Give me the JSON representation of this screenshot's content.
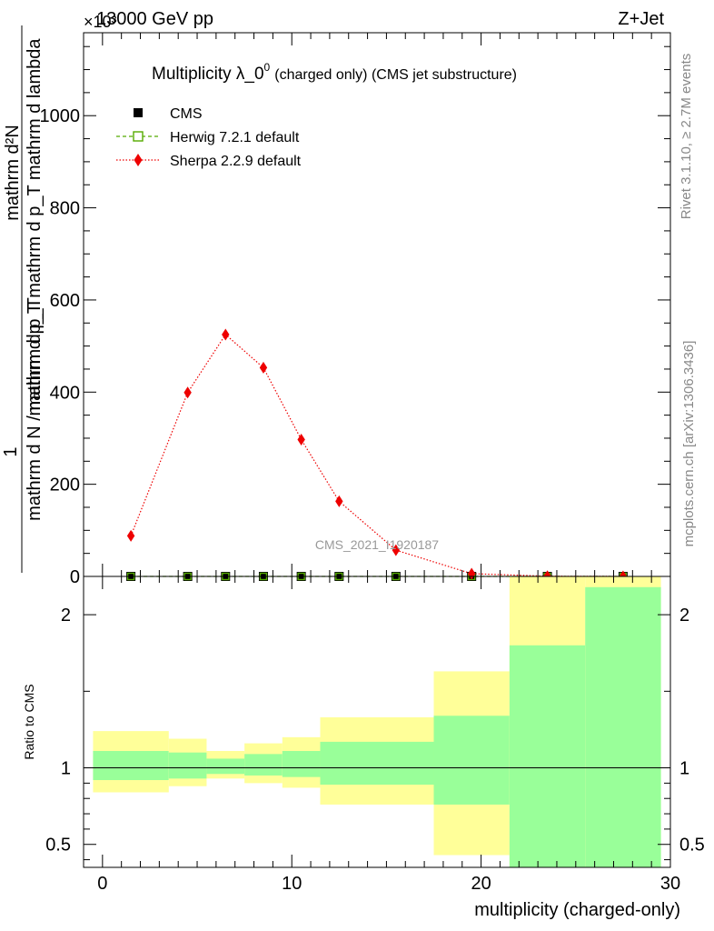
{
  "header": {
    "left": "13000 GeV pp",
    "right": "Z+Jet",
    "y_multiplier": "×10³"
  },
  "chart_data": [
    {
      "type": "line",
      "title_main": "Multiplicity λ_0",
      "title_sup": "0",
      "title_suffix": "(charged only) (CMS jet substructure)",
      "ylabel_numerator": "mathrm d²N",
      "ylabel_line1": "mathrm d p_T mathrm d p_T mathrm d lambda",
      "ylabel_line2": "mathrm d N / mathrm d p_T",
      "ylabel_one": "1",
      "ylim": [
        0,
        1180
      ],
      "yscale_factor": 1000,
      "xlim": [
        -1,
        30
      ],
      "yticks": [
        0,
        200,
        400,
        600,
        800,
        1000
      ],
      "ytick_labels": [
        "0",
        "200",
        "400",
        "600",
        "800",
        "1000"
      ],
      "legend_position": "top-left",
      "series": [
        {
          "name": "CMS",
          "marker": "square",
          "color": "#000000",
          "x": [
            1.5,
            4.5,
            6.5,
            8.5,
            10.5,
            12.5,
            15.5,
            19.5,
            23.5,
            27.5
          ],
          "y": [
            0,
            0,
            0,
            0,
            0,
            0,
            0,
            0,
            0,
            0
          ]
        },
        {
          "name": "Herwig 7.2.1 default",
          "marker": "open-square",
          "line": "dashed",
          "color": "#55aa00",
          "x": [
            1.5,
            4.5,
            6.5,
            8.5,
            10.5,
            12.5,
            15.5,
            19.5,
            23.5,
            27.5
          ],
          "y": [
            0,
            0,
            0,
            0,
            0,
            0,
            0,
            0,
            0,
            0
          ]
        },
        {
          "name": "Sherpa 2.2.9 default",
          "marker": "diamond",
          "line": "dotted",
          "color": "#ee0000",
          "x": [
            1.5,
            4.5,
            6.5,
            8.5,
            10.5,
            12.5,
            15.5,
            19.5,
            23.5,
            27.5
          ],
          "y": [
            88,
            399,
            525,
            453,
            297,
            163,
            57,
            6,
            0.5,
            0.1
          ]
        }
      ],
      "annotation": "CMS_2021_I1920187"
    },
    {
      "type": "area",
      "ylabel": "Ratio to CMS",
      "xlabel": "multiplicity (charged-only)",
      "xlim": [
        -1,
        30
      ],
      "ylim": [
        0.35,
        2.25
      ],
      "xticks": [
        0,
        10,
        20,
        30
      ],
      "xtick_labels": [
        "0",
        "10",
        "20",
        "30"
      ],
      "yticks": [
        0.5,
        1,
        2
      ],
      "ytick_labels": [
        "0.5",
        "1",
        "2"
      ],
      "reference_line": 1,
      "bins": [
        {
          "lo": -0.5,
          "hi": 3.5,
          "stat": [
            0.92,
            1.11
          ],
          "total": [
            0.84,
            1.24
          ]
        },
        {
          "lo": 3.5,
          "hi": 5.5,
          "stat": [
            0.93,
            1.1
          ],
          "total": [
            0.88,
            1.19
          ]
        },
        {
          "lo": 5.5,
          "hi": 7.5,
          "stat": [
            0.96,
            1.06
          ],
          "total": [
            0.93,
            1.11
          ]
        },
        {
          "lo": 7.5,
          "hi": 9.5,
          "stat": [
            0.95,
            1.09
          ],
          "total": [
            0.9,
            1.16
          ]
        },
        {
          "lo": 9.5,
          "hi": 11.5,
          "stat": [
            0.94,
            1.11
          ],
          "total": [
            0.87,
            1.2
          ]
        },
        {
          "lo": 11.5,
          "hi": 17.5,
          "stat": [
            0.89,
            1.17
          ],
          "total": [
            0.76,
            1.33
          ]
        },
        {
          "lo": 17.5,
          "hi": 21.5,
          "stat": [
            0.76,
            1.34
          ],
          "total": [
            0.43,
            1.63
          ]
        },
        {
          "lo": 21.5,
          "hi": 25.5,
          "stat": [
            0.35,
            1.8
          ],
          "total": [
            0.35,
            2.25
          ]
        },
        {
          "lo": 25.5,
          "hi": 29.5,
          "stat": [
            0.35,
            2.18
          ],
          "total": [
            0.35,
            2.25
          ]
        }
      ]
    }
  ],
  "side_labels": {
    "rivet": "Rivet 3.1.10, ≥ 2.7M events",
    "mcplots": "mcplots.cern.ch [arXiv:1306.3436]"
  }
}
